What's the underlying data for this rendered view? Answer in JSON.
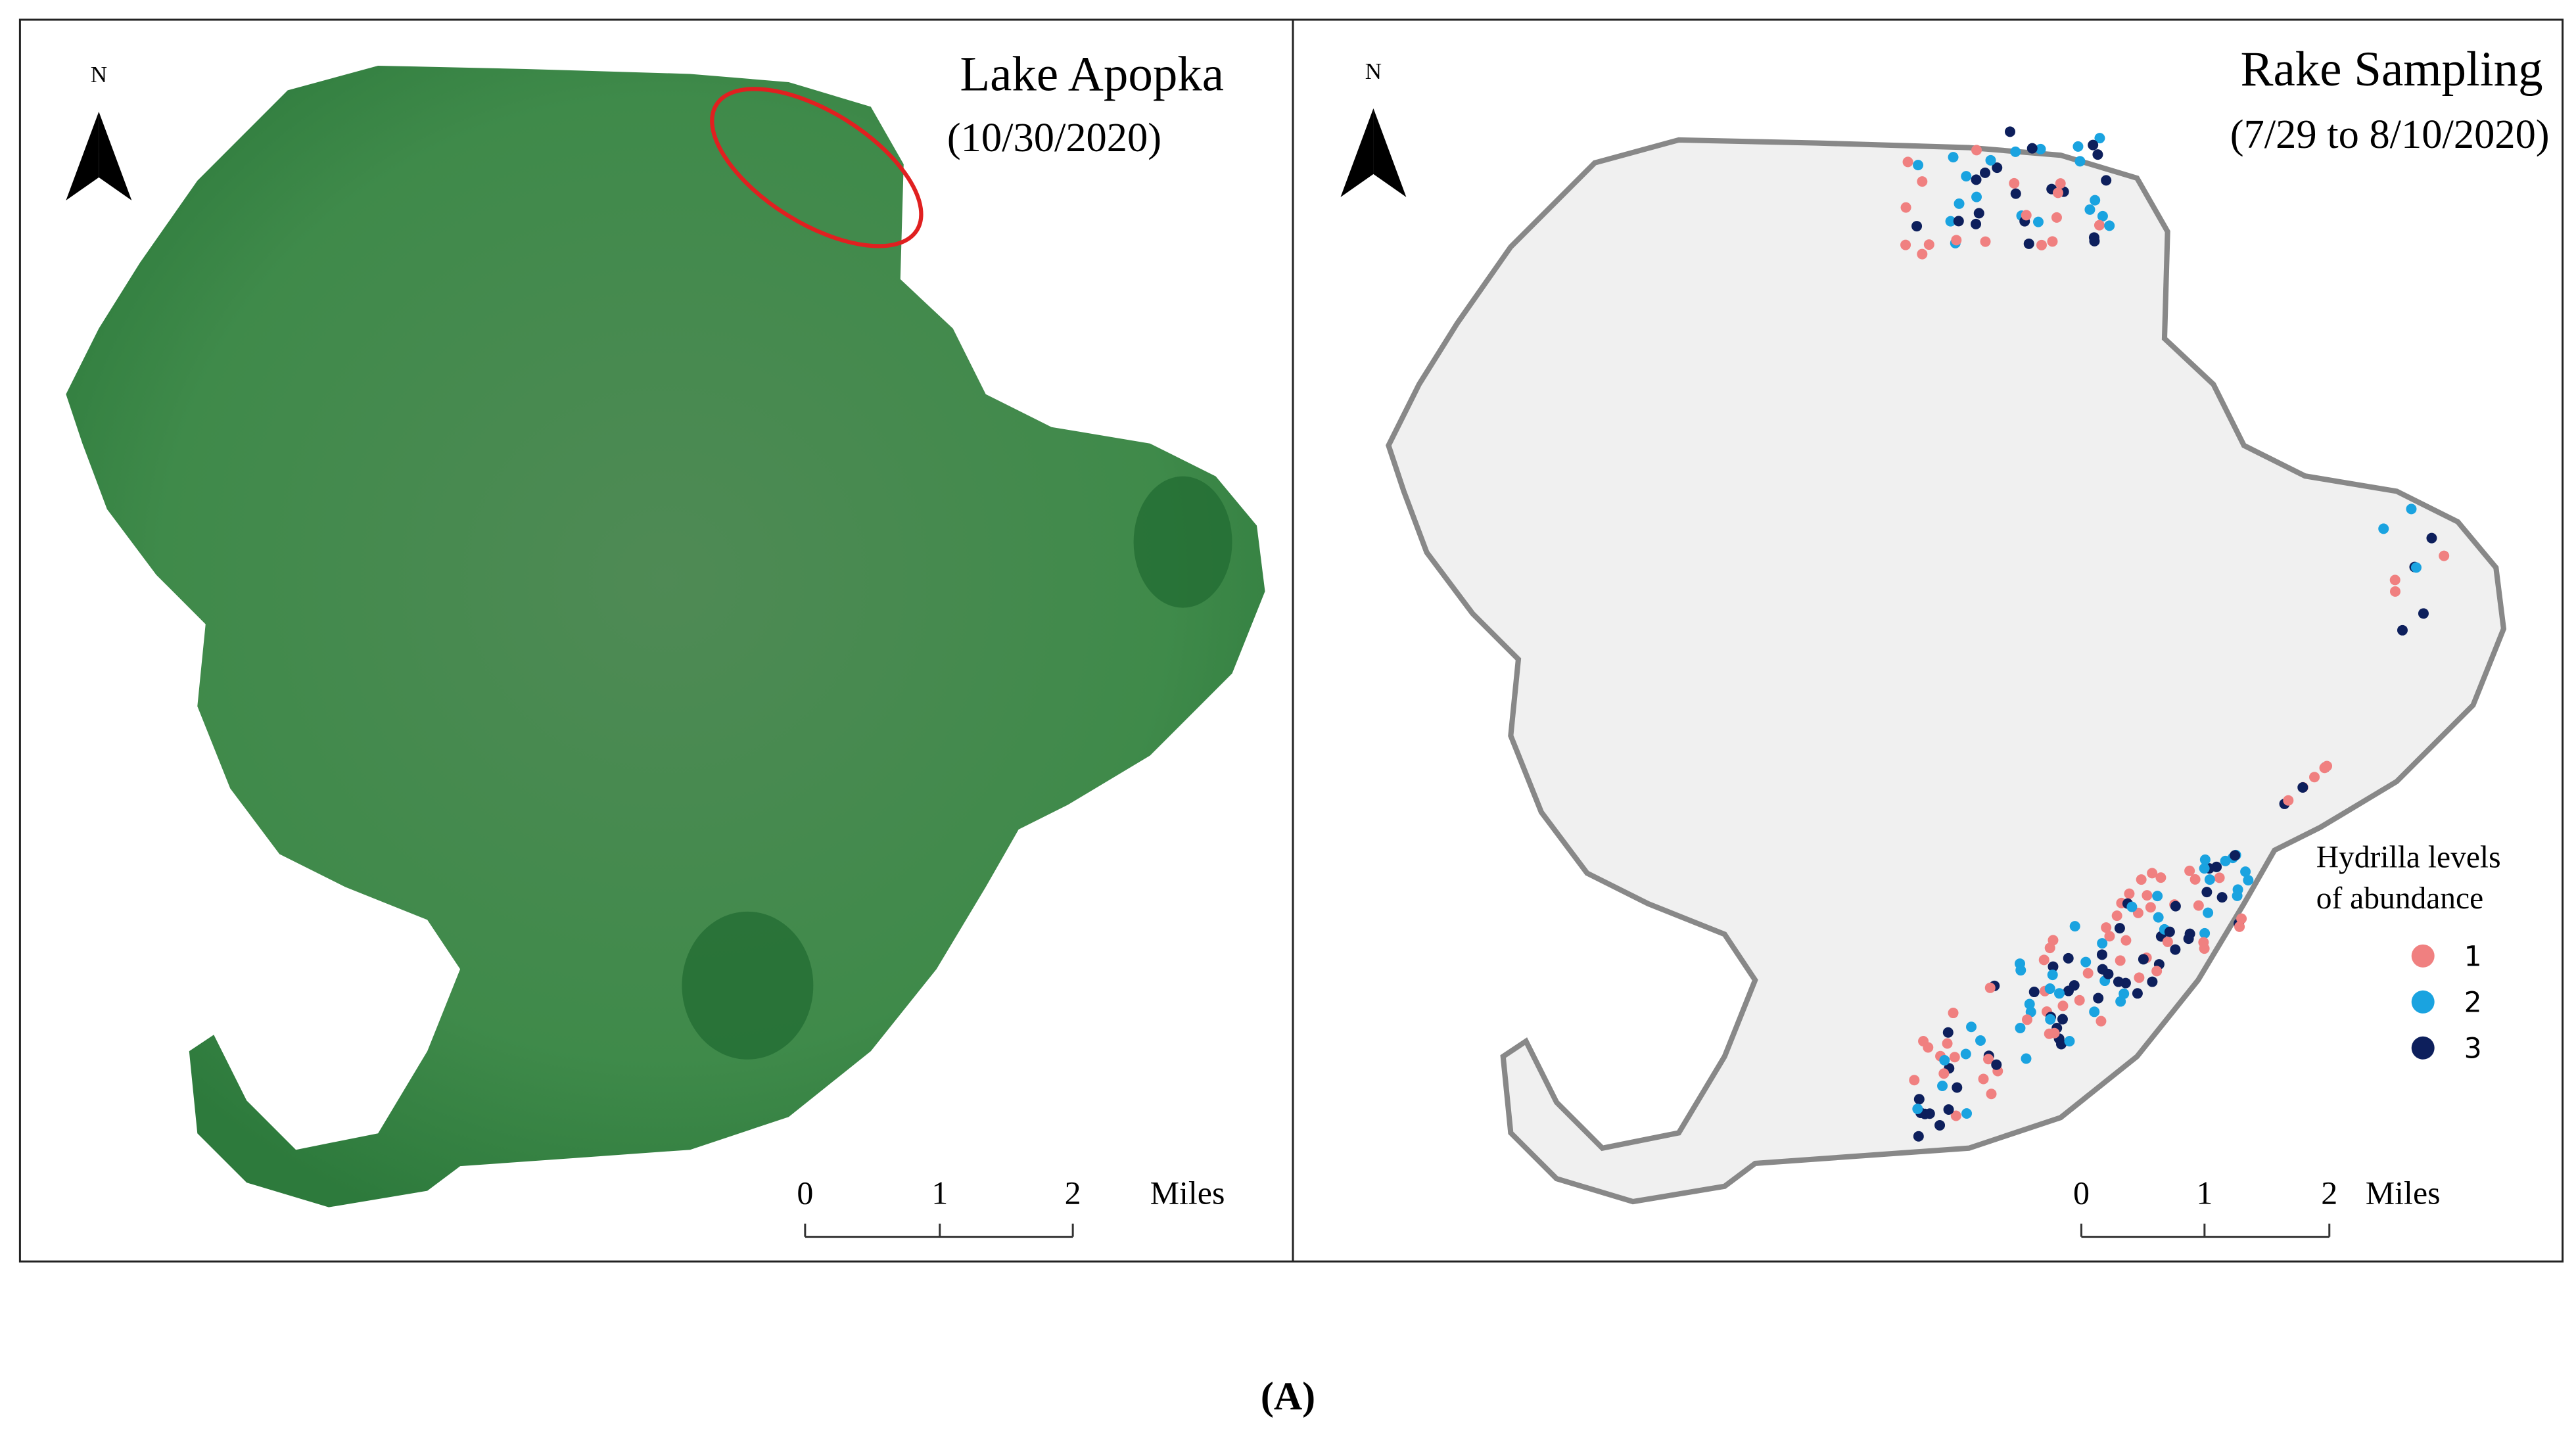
{
  "panels": [
    {
      "title": "Lake Apopka",
      "subtitle": "(10/30/2020)",
      "north": "N",
      "scale": {
        "ticks": [
          "0",
          "1",
          "2"
        ],
        "unit": "Miles"
      }
    },
    {
      "title": "Rake Sampling",
      "subtitle": "(7/29 to 8/10/2020)",
      "north": "N",
      "scale": {
        "ticks": [
          "0",
          "1",
          "2"
        ],
        "unit": "Miles"
      },
      "legend": {
        "title": [
          "Hydrilla levels",
          "of abundance"
        ],
        "items": [
          {
            "label": "1",
            "color": "#f08080"
          },
          {
            "label": "2",
            "color": "#1aa3e0"
          },
          {
            "label": "3",
            "color": "#0d1f5c"
          }
        ]
      }
    }
  ],
  "caption": "(A)"
}
